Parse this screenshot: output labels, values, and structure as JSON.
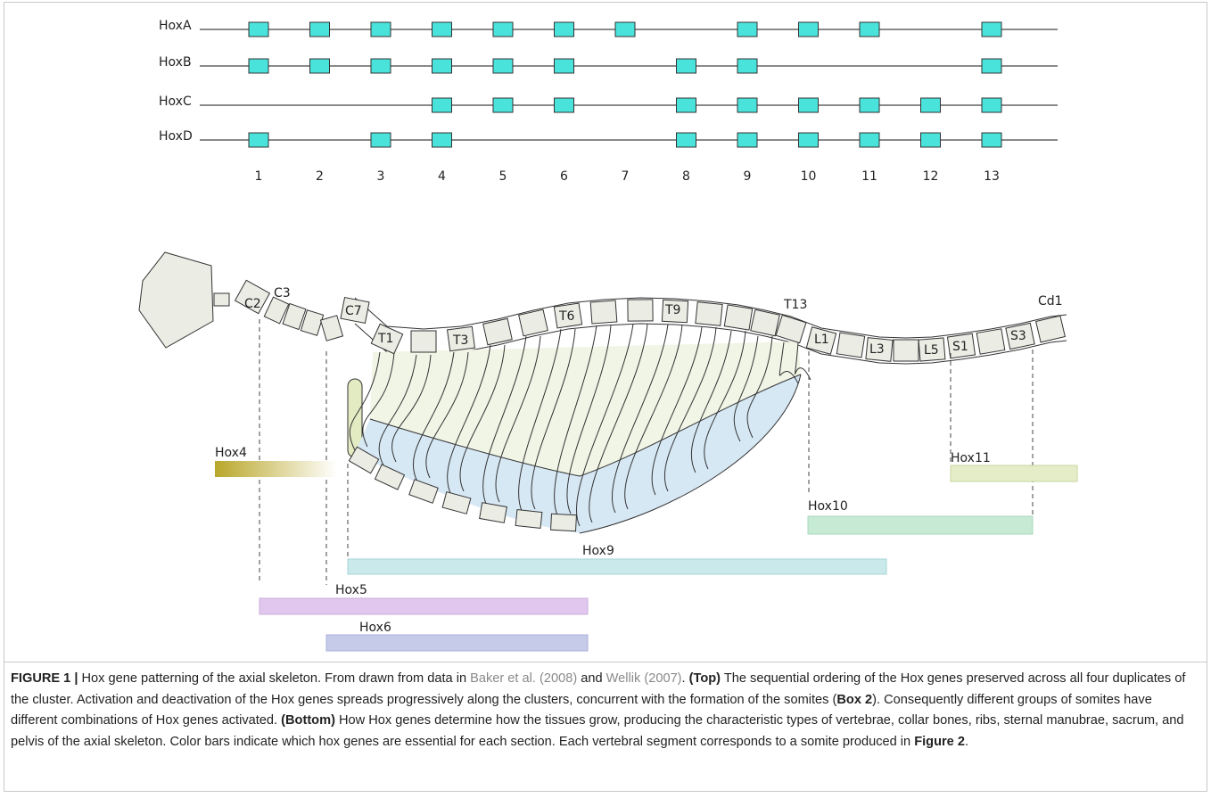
{
  "clusters": [
    {
      "name": "HoxA",
      "present": [
        true,
        true,
        true,
        true,
        true,
        true,
        true,
        false,
        true,
        true,
        true,
        false,
        true
      ]
    },
    {
      "name": "HoxB",
      "present": [
        true,
        true,
        true,
        true,
        true,
        true,
        false,
        true,
        true,
        false,
        false,
        false,
        true
      ]
    },
    {
      "name": "HoxC",
      "present": [
        false,
        false,
        false,
        true,
        true,
        true,
        false,
        true,
        true,
        true,
        true,
        true,
        true
      ]
    },
    {
      "name": "HoxD",
      "present": [
        true,
        false,
        true,
        true,
        false,
        false,
        false,
        true,
        true,
        true,
        true,
        true,
        true
      ]
    }
  ],
  "paralog_labels": [
    "1",
    "2",
    "3",
    "4",
    "5",
    "6",
    "7",
    "8",
    "9",
    "10",
    "11",
    "12",
    "13"
  ],
  "skeleton": {
    "labels": [
      "C2",
      "C3",
      "C7",
      "T1",
      "T3",
      "T6",
      "T9",
      "T13",
      "L1",
      "L3",
      "L5",
      "S1",
      "S3",
      "Cd1"
    ]
  },
  "hox_bars": [
    "Hox4",
    "Hox11",
    "Hox10",
    "Hox9",
    "Hox5",
    "Hox6"
  ],
  "caption": {
    "parts": [
      "FIGURE 1 |",
      " Hox gene patterning of the axial skeleton. From drawn from data in ",
      "Baker et al. (2008)",
      " and ",
      "Wellik (2007)",
      ". ",
      "(Top)",
      " The sequential ordering of the Hox genes preserved across all four duplicates of the cluster. Activation and deactivation of the Hox genes spreads progressively along the clusters, concurrent with the formation of the somites (",
      "Box 2",
      "). Consequently different groups of somites have different combinations of Hox genes activated. ",
      "(Bottom)",
      " How Hox genes determine how the tissues grow, producing the characteristic types of vertebrae, collar bones, ribs, sternal manubrae, sacrum, and pelvis of the axial skeleton. Color bars indicate which hox genes are essential for each section. Each vertebral segment corresponds to a somite produced in ",
      "Figure 2",
      "."
    ]
  }
}
